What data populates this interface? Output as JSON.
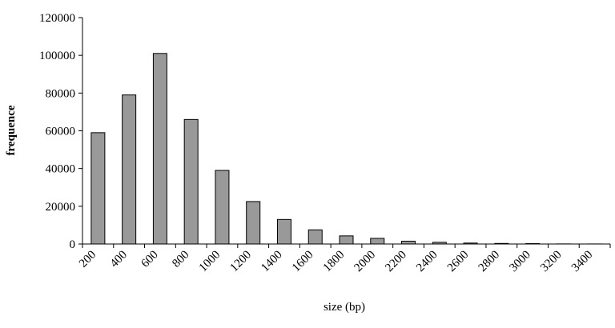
{
  "chart_data": {
    "type": "bar",
    "x_label": "size (bp)",
    "y_label": "frequence",
    "categories": [
      "200",
      "400",
      "600",
      "800",
      "1000",
      "1200",
      "1400",
      "1600",
      "1800",
      "2000",
      "2200",
      "2400",
      "2600",
      "2800",
      "3000",
      "3200",
      "3400"
    ],
    "values": [
      59000,
      79000,
      101000,
      66000,
      39000,
      22500,
      13000,
      7500,
      4300,
      3000,
      1500,
      900,
      500,
      300,
      200,
      50,
      30
    ],
    "color": "#999999",
    "ylim": [
      0,
      120000
    ],
    "yticks": [
      0,
      20000,
      40000,
      60000,
      80000,
      100000,
      120000
    ],
    "grid": false
  }
}
